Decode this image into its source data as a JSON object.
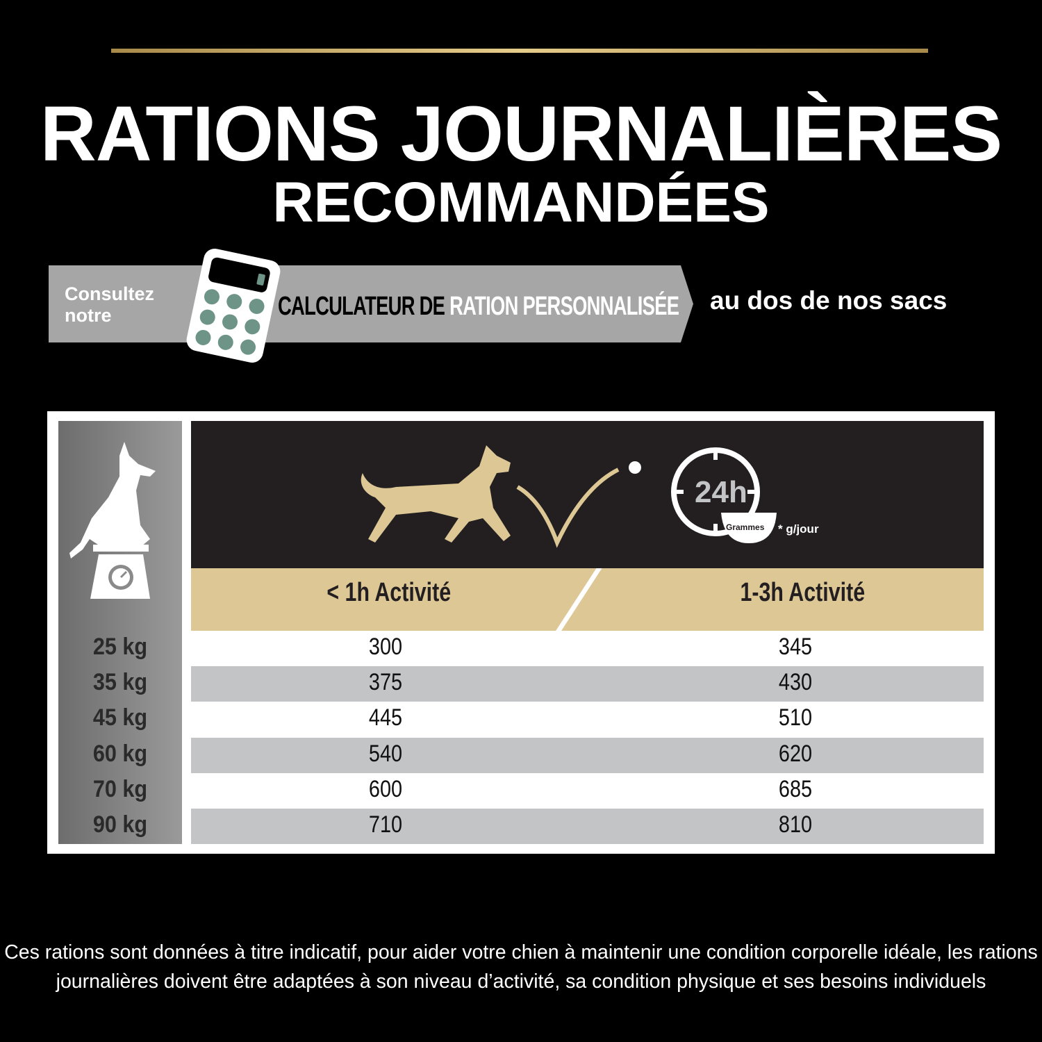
{
  "title_line1": "RATIONS JOURNALIÈRES",
  "title_line2": "RECOMMANDÉES",
  "banner": {
    "consult": "Consultez notre",
    "calc_part1": "CALCULATEUR DE",
    "calc_part2": "RATION PERSONNALISÉE",
    "after": "au dos de  nos sacs"
  },
  "icons": {
    "dog": "dog-on-scale-icon",
    "running": "running-dog-icon",
    "clock": "clock-24h-icon",
    "calculator": "calculator-icon"
  },
  "clock": {
    "label": "24h",
    "bowl": "Grammes",
    "unit": "* g/jour"
  },
  "table": {
    "columns": [
      "< 1h Activité",
      "1-3h Activité"
    ],
    "rows": [
      {
        "weight": "25 kg",
        "low": "300",
        "high": "345"
      },
      {
        "weight": "35 kg",
        "low": "375",
        "high": "430"
      },
      {
        "weight": "45 kg",
        "low": "445",
        "high": "510"
      },
      {
        "weight": "60 kg",
        "low": "540",
        "high": "620"
      },
      {
        "weight": "70 kg",
        "low": "600",
        "high": "685"
      },
      {
        "weight": "90 kg",
        "low": "710",
        "high": "810"
      }
    ]
  },
  "footnote": "Ces rations sont données à titre indicatif, pour aider votre chien à maintenir une condition corporelle idéale, les rations journalières doivent être adaptées à son niveau d’activité, sa condition physique et ses besoins individuels",
  "colors": {
    "gold": "#dcc795",
    "calc_keys": "#6d9487",
    "header_bg": "#231f20",
    "row_gray": "#c3c4c6"
  }
}
